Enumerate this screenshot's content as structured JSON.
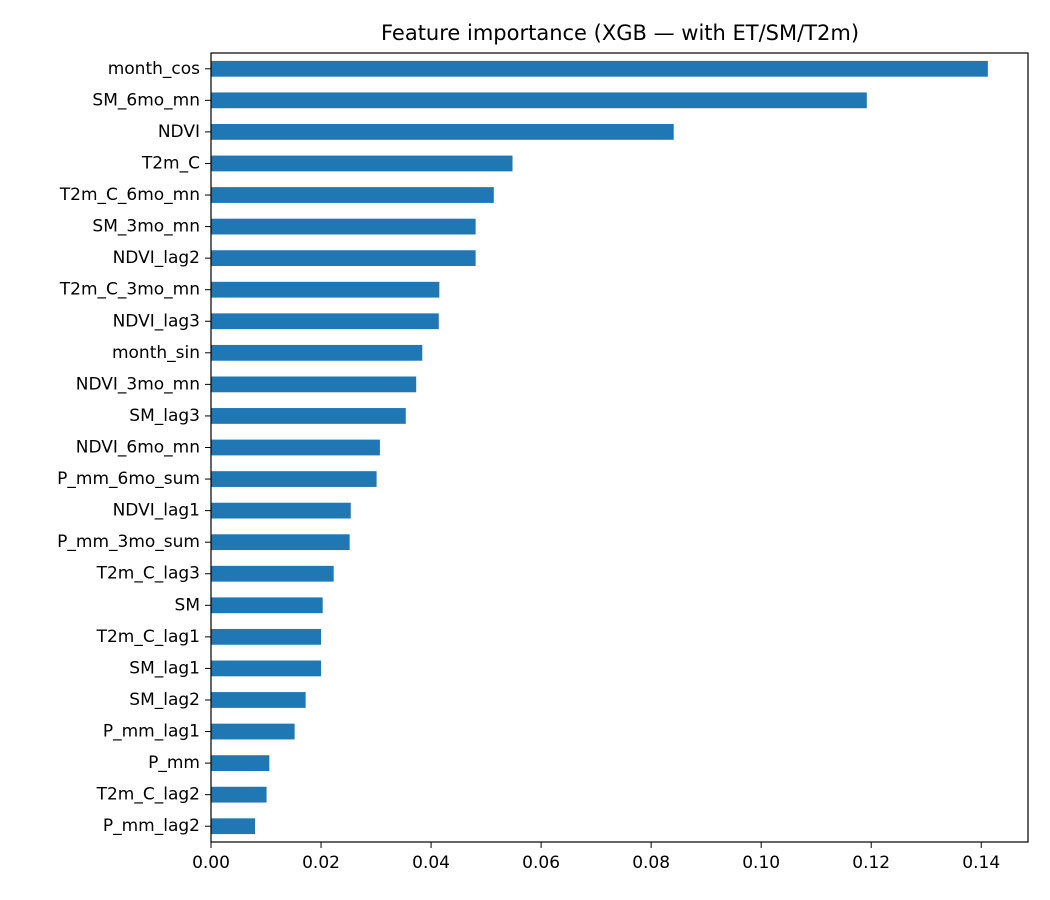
{
  "chart_data": {
    "type": "bar",
    "orientation": "horizontal",
    "title": "Feature importance (XGB — with ET/SM/T2m)",
    "xlabel": "",
    "ylabel": "",
    "xlim": [
      0,
      0.1485
    ],
    "xticks": [
      0.0,
      0.02,
      0.04,
      0.06,
      0.08,
      0.1,
      0.12,
      0.14
    ],
    "xtick_labels": [
      "0.00",
      "0.02",
      "0.04",
      "0.06",
      "0.08",
      "0.10",
      "0.12",
      "0.14"
    ],
    "grid": false,
    "bar_color": "#1f77b4",
    "categories": [
      "month_cos",
      "SM_6mo_mn",
      "NDVI",
      "T2m_C",
      "T2m_C_6mo_mn",
      "SM_3mo_mn",
      "NDVI_lag2",
      "T2m_C_3mo_mn",
      "NDVI_lag3",
      "month_sin",
      "NDVI_3mo_mn",
      "SM_lag3",
      "NDVI_6mo_mn",
      "P_mm_6mo_sum",
      "NDVI_lag1",
      "P_mm_3mo_sum",
      "T2m_C_lag3",
      "SM",
      "T2m_C_lag1",
      "SM_lag1",
      "SM_lag2",
      "P_mm_lag1",
      "P_mm",
      "T2m_C_lag2",
      "P_mm_lag2"
    ],
    "values": [
      0.1412,
      0.1192,
      0.0841,
      0.0548,
      0.0514,
      0.0481,
      0.0481,
      0.0415,
      0.0414,
      0.0384,
      0.0373,
      0.0354,
      0.0307,
      0.0301,
      0.0254,
      0.0252,
      0.0223,
      0.0203,
      0.02,
      0.02,
      0.0172,
      0.0152,
      0.0106,
      0.0101,
      0.008
    ]
  }
}
